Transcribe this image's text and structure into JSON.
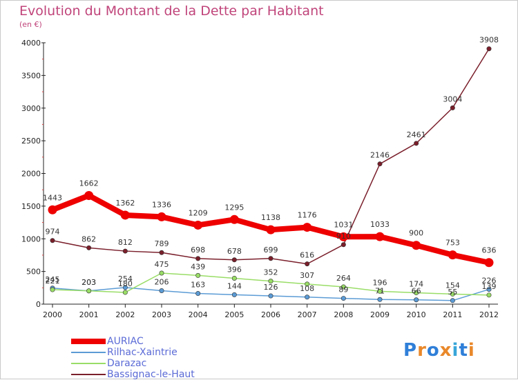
{
  "title": "Evolution du Montant de la Dette par Habitant",
  "subtitle": "(en €)",
  "chart_data": {
    "type": "line",
    "x": [
      "2000",
      "2001",
      "2002",
      "2003",
      "2004",
      "2005",
      "2006",
      "2007",
      "2008",
      "2009",
      "2010",
      "2011",
      "2012"
    ],
    "ylim": [
      0,
      4000
    ],
    "yticks": [
      0,
      500,
      1000,
      1500,
      2000,
      2500,
      3000,
      3500,
      4000
    ],
    "grid": false,
    "legend_position": "bottom-left",
    "series": [
      {
        "name": "AURIAC",
        "color": "#ee0000",
        "width": 8,
        "values": [
          1443,
          1662,
          1362,
          1336,
          1209,
          1295,
          1138,
          1176,
          1031,
          1033,
          900,
          753,
          636
        ],
        "labels": [
          "1443",
          "1662",
          "1362",
          "1336",
          "1209",
          "1295",
          "1138",
          "1176",
          "1031",
          "1033",
          "900",
          "753",
          "636"
        ]
      },
      {
        "name": "Rilhac-Xaintrie",
        "color": "#5b9bd5",
        "width": 1.5,
        "values": [
          245,
          203,
          254,
          206,
          163,
          144,
          126,
          108,
          89,
          71,
          66,
          55,
          226
        ],
        "labels": [
          "245",
          "203",
          "254",
          "206",
          "163",
          "144",
          "126",
          "108",
          "89",
          "71",
          "66",
          "55",
          "226"
        ]
      },
      {
        "name": "Darazac",
        "color": "#99dd66",
        "width": 1.5,
        "values": [
          221,
          203,
          180,
          475,
          439,
          396,
          352,
          307,
          264,
          196,
          174,
          154,
          139
        ],
        "labels": [
          "221",
          "203",
          "180",
          "475",
          "439",
          "396",
          "352",
          "307",
          "264",
          "196",
          "174",
          "154",
          "139"
        ]
      },
      {
        "name": "Bassignac-le-Haut",
        "color": "#7a1f2b",
        "width": 1.5,
        "values": [
          974,
          862,
          812,
          789,
          698,
          678,
          699,
          616,
          910,
          2146,
          2461,
          3004,
          3908
        ],
        "labels": [
          "974",
          "862",
          "812",
          "789",
          "698",
          "678",
          "699",
          "616",
          "910",
          "2146",
          "2461",
          "3004",
          "3908"
        ]
      }
    ]
  },
  "logo": {
    "text": "Proxiti",
    "letter_colors": [
      "#2f7fd8",
      "#e9882a",
      "#2f7fd8",
      "#e9882a",
      "#3aa6d8",
      "#2f7fd8",
      "#e9882a"
    ]
  }
}
